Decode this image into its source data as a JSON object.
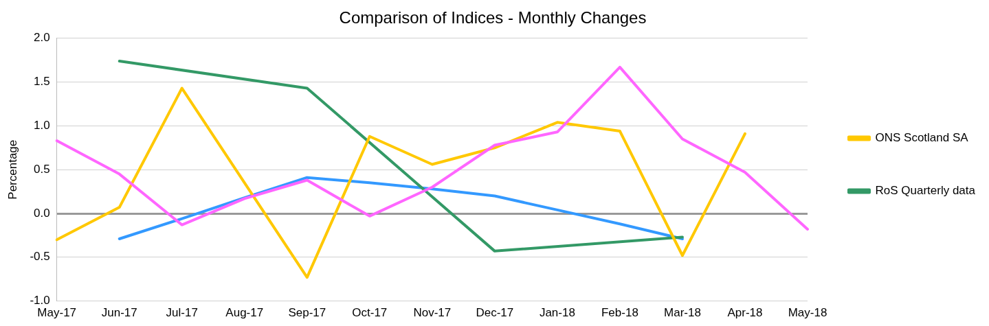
{
  "chart_data": {
    "type": "line",
    "title": "Comparison of Indices - Monthly Changes",
    "ylabel": "Percentage",
    "categories": [
      "May-17",
      "Jun-17",
      "Jul-17",
      "Aug-17",
      "Sep-17",
      "Oct-17",
      "Nov-17",
      "Dec-17",
      "Jan-18",
      "Feb-18",
      "Mar-18",
      "Apr-18",
      "May-18"
    ],
    "series": [
      {
        "color": "#ff66ff",
        "values": [
          0.83,
          0.45,
          -0.13,
          0.17,
          0.38,
          -0.03,
          0.3,
          0.78,
          0.93,
          1.67,
          0.85,
          0.47,
          -0.18
        ]
      },
      {
        "name": "ONS Scotland SA",
        "color": "#ffc800",
        "values": [
          -0.3,
          0.07,
          1.43,
          0.35,
          -0.73,
          0.88,
          0.56,
          0.75,
          1.04,
          0.94,
          -0.48,
          0.91,
          null
        ]
      },
      {
        "name": "RoS Quarterly data",
        "color": "#339966",
        "values": [
          null,
          1.74,
          null,
          null,
          1.43,
          null,
          null,
          -0.43,
          null,
          null,
          -0.27,
          null,
          null
        ]
      },
      {
        "color": "#3399ff",
        "values": [
          null,
          -0.29,
          -0.06,
          0.18,
          0.41,
          0.35,
          0.28,
          0.2,
          0.04,
          -0.12,
          -0.29,
          null,
          null
        ]
      }
    ],
    "ylim": [
      -1.0,
      2.0
    ],
    "yticks": [
      {
        "value": -1,
        "label": "-1.0"
      },
      {
        "value": -0.5,
        "label": "-0.5"
      },
      {
        "value": 0,
        "label": "0.0"
      },
      {
        "value": 0.5,
        "label": "0.5"
      },
      {
        "value": 1,
        "label": "1.0"
      },
      {
        "value": 1.5,
        "label": "1.5"
      },
      {
        "value": 2,
        "label": "2.0"
      }
    ],
    "grid": "y",
    "legend": "right",
    "marker": "none",
    "line_style": "solid"
  }
}
